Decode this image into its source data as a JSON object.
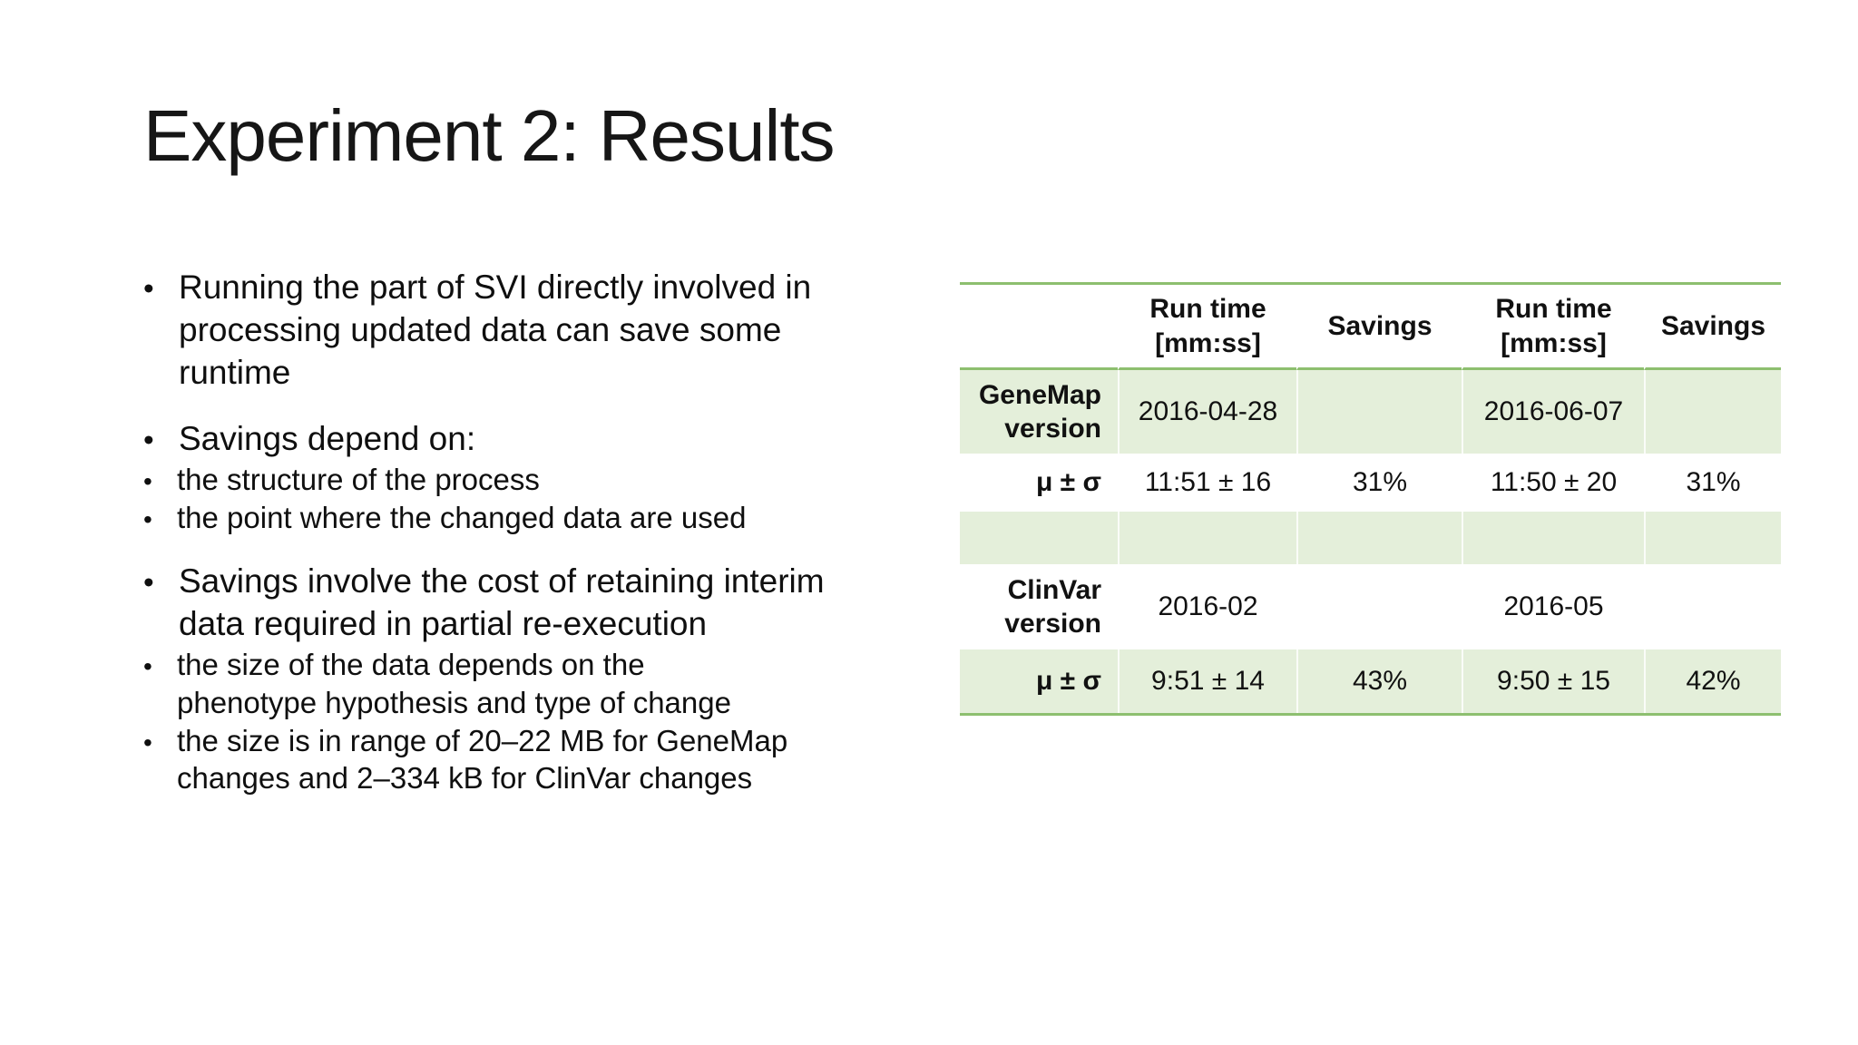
{
  "slide": {
    "title": "Experiment 2: Results",
    "bullets": [
      {
        "level": 1,
        "text": "Running the part of SVI directly involved in\nprocessing updated data can save some\nruntime"
      },
      {
        "level": 1,
        "text": "Savings depend on:"
      },
      {
        "level": 2,
        "text": "the structure of the process"
      },
      {
        "level": 2,
        "text": "the point where the changed data are used"
      },
      {
        "level": 1,
        "text": "Savings involve the cost of retaining interim\ndata required in partial re-execution"
      },
      {
        "level": 2,
        "text": "the size of the data depends on the\nphenotype hypothesis and type of change"
      },
      {
        "level": 2,
        "text": "the size is in range of 20–22 MB for GeneMap\nchanges and 2–334 kB for ClinVar changes"
      }
    ],
    "table": {
      "header": [
        "",
        "Run time\n[mm:ss]",
        "Savings",
        "Run time\n[mm:ss]",
        "Savings"
      ],
      "rows": [
        {
          "label": "GeneMap\nversion",
          "cells": [
            "2016-04-28",
            "",
            "2016-06-07",
            ""
          ],
          "shaded": true
        },
        {
          "label": "μ ± σ",
          "cells": [
            "11:51 ± 16",
            "31%",
            "11:50 ± 20",
            "31%"
          ],
          "shaded": false
        },
        {
          "label": "",
          "cells": [
            "",
            "",
            "",
            ""
          ],
          "shaded": true
        },
        {
          "label": "ClinVar\nversion",
          "cells": [
            "2016-02",
            "",
            "2016-05",
            ""
          ],
          "shaded": false
        },
        {
          "label": "μ ± σ",
          "cells": [
            "9:51 ± 14",
            "43%",
            "9:50 ± 15",
            "42%"
          ],
          "shaded": true
        }
      ],
      "colors": {
        "row_band": "#e4efda",
        "border_green": "#8dbf6f",
        "cell_separator": "#f5faf0",
        "text": "#111111"
      }
    }
  }
}
